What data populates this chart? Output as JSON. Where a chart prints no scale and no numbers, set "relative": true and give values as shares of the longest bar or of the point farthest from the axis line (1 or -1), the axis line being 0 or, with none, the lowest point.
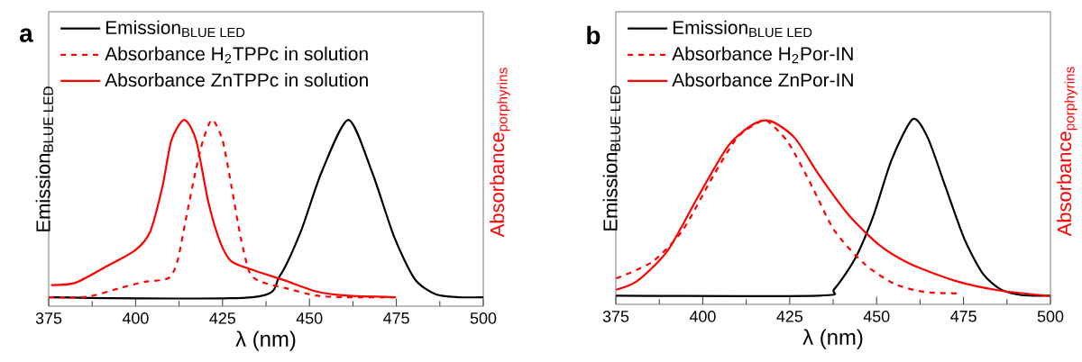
{
  "chart_data": [
    {
      "type": "line",
      "relative": true,
      "xlim": [
        375,
        500
      ],
      "xticks": [
        375,
        400,
        425,
        450,
        475,
        500
      ],
      "xlabel": "λ (nm)",
      "ylabel": "\\textrm{Emission}_{\\textrm{BLUE LED}}",
      "y2label": "\\textrm{Absorbance}_{\\textrm{porphyrins}}",
      "legend": "top left",
      "annotations": [
        "a"
      ],
      "series": [
        {
          "name": "\\textrm{Emission}_{\\textrm{BLUE LED}}",
          "color": "#000000",
          "line_style": "solid",
          "x": [
            375,
            433.6,
            441.4,
            447.5,
            453.5,
            461.2,
            468,
            474.4,
            480.3,
            486.3,
            493,
            500
          ],
          "values": [
            0.048,
            0.048,
            0.16,
            0.4,
            0.72,
            1.0,
            0.72,
            0.37,
            0.145,
            0.064,
            0.048,
            0.048
          ]
        },
        {
          "name": "Absorbance H$_{2}$TPPc in solution",
          "color": "#ff0000",
          "line_style": "dashed",
          "x": [
            375,
            386,
            395.5,
            402.5,
            409.4,
            412,
            414.6,
            417.2,
            419.4,
            422,
            425,
            427.6,
            430.2,
            432.8,
            436.2,
            443.1,
            451.8,
            460.4,
            475
          ],
          "values": [
            0.048,
            0.05,
            0.097,
            0.13,
            0.15,
            0.24,
            0.48,
            0.72,
            0.89,
            1.0,
            0.89,
            0.64,
            0.37,
            0.18,
            0.13,
            0.097,
            0.057,
            0.048,
            0.048
          ]
        },
        {
          "name": "Absorbance ZnTPPc in solution",
          "color": "#ff0000",
          "line_style": "solid",
          "x": [
            375.7,
            382.6,
            391.3,
            399.9,
            404.2,
            407.7,
            410.3,
            414,
            417.4,
            420.9,
            424.4,
            427.6,
            434.4,
            443.1,
            451.8,
            460.4,
            474.3
          ],
          "values": [
            0.113,
            0.125,
            0.21,
            0.3,
            0.4,
            0.64,
            0.89,
            1.0,
            0.89,
            0.56,
            0.34,
            0.24,
            0.19,
            0.137,
            0.08,
            0.057,
            0.048
          ]
        }
      ]
    },
    {
      "type": "line",
      "relative": true,
      "xlim": [
        375,
        500
      ],
      "xticks": [
        375,
        400,
        425,
        450,
        475,
        500
      ],
      "xlabel": "λ (nm)",
      "ylabel": "\\textrm{Emission}_{\\textrm{BLUE LED}}",
      "y2label": "\\textrm{Absorbance}_{\\textrm{porphyrins}}",
      "legend": "top left",
      "annotations": [
        "b"
      ],
      "series": [
        {
          "name": "\\textrm{Emission}_{\\textrm{BLUE LED}}",
          "color": "#000000",
          "line_style": "solid",
          "x": [
            375,
            433.4,
            437.8,
            443.9,
            449.1,
            454.3,
            460.4,
            464.7,
            469.9,
            475.2,
            480.4,
            485.6,
            491.7,
            500
          ],
          "values": [
            0.047,
            0.047,
            0.082,
            0.25,
            0.48,
            0.78,
            1.0,
            0.9,
            0.63,
            0.355,
            0.17,
            0.082,
            0.05,
            0.047
          ]
        },
        {
          "name": "Absorbance H$_{2}$Por-IN",
          "color": "#ff0000",
          "line_style": "dashed",
          "x": [
            375.1,
            385.5,
            394.2,
            402.9,
            409.9,
            415.9,
            418.6,
            424.7,
            431.6,
            437.8,
            446.4,
            455.2,
            463.8,
            473.8
          ],
          "values": [
            0.14,
            0.23,
            0.4,
            0.69,
            0.9,
            0.98,
            0.99,
            0.87,
            0.63,
            0.4,
            0.22,
            0.11,
            0.067,
            0.059
          ]
        },
        {
          "name": "Absorbance ZnPor-IN",
          "color": "#ff0000",
          "line_style": "solid",
          "x": [
            375.1,
            381.2,
            389.9,
            398.6,
            407.3,
            414.3,
            419.5,
            426.4,
            433.4,
            442.1,
            450.8,
            459.5,
            472.6,
            485.6,
            500
          ],
          "values": [
            0.079,
            0.127,
            0.29,
            0.58,
            0.855,
            0.97,
            0.99,
            0.9,
            0.7,
            0.48,
            0.32,
            0.22,
            0.127,
            0.074,
            0.045
          ]
        }
      ]
    }
  ]
}
